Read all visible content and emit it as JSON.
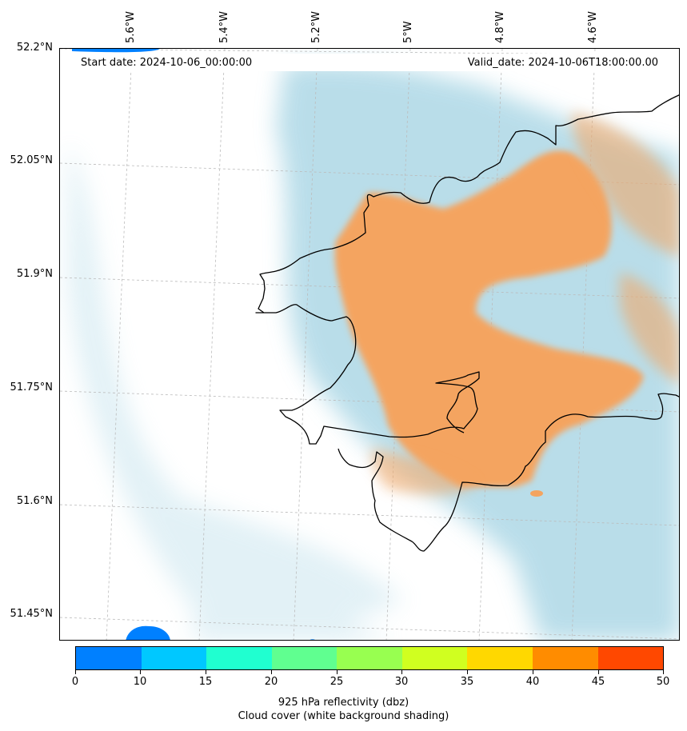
{
  "header": {
    "start_date": "Start date: 2024-10-06_00:00:00",
    "valid_date": "Valid_date: 2024-10-06T18:00:00.00"
  },
  "axes": {
    "longitude_labels": [
      "5.6°W",
      "5.4°W",
      "5.2°W",
      "5°W",
      "4.8°W",
      "4.6°W"
    ],
    "latitude_labels": [
      "52.2°N",
      "52.05°N",
      "51.9°N",
      "51.75°N",
      "51.6°N",
      "51.45°N"
    ]
  },
  "colorbar": {
    "ticks": [
      "0",
      "10",
      "15",
      "20",
      "25",
      "30",
      "35",
      "40",
      "45",
      "50"
    ],
    "colors": [
      "#0080ff",
      "#00c8ff",
      "#20ffd0",
      "#60ff90",
      "#98ff50",
      "#d0ff20",
      "#ffd800",
      "#ff8c00",
      "#ff4800"
    ],
    "label_line1": "925 hPa reflectivity (dbz)",
    "label_line2": "Cloud cover (white background shading)"
  },
  "colors": {
    "cloud": "#add8e6",
    "precip": "#f4a460",
    "radar_low": "#0080ff",
    "coastline": "#000000",
    "gridline": "#bbbbbb"
  }
}
